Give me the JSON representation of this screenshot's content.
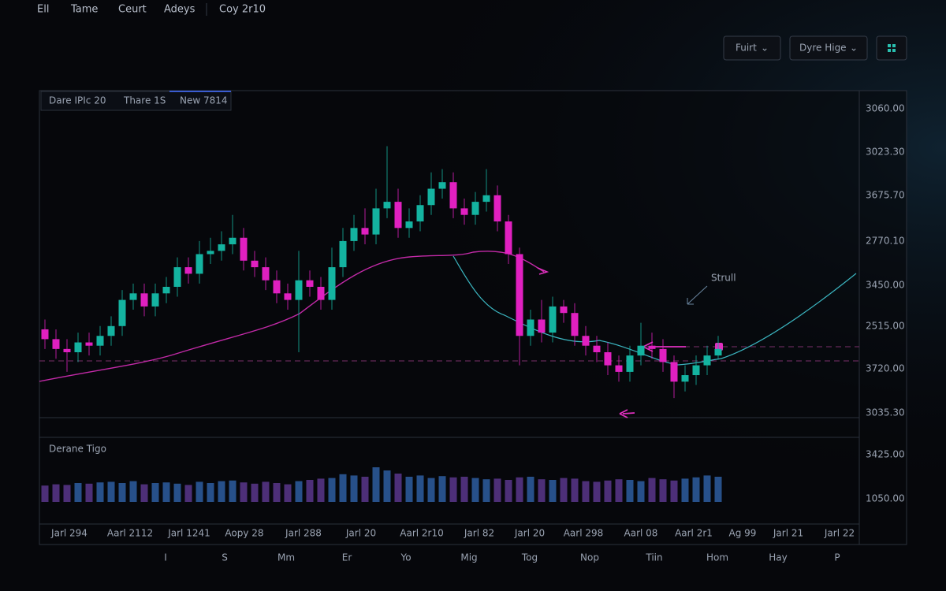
{
  "toolbar": {
    "items": [
      "Ell",
      "Tame",
      "Ceurt",
      "Adeys",
      "Coy 2r10"
    ],
    "buttons": [
      "Fuirt",
      "Dyre Hige"
    ]
  },
  "tabs": [
    "Dare IPIc 20",
    "Thare 1S",
    "New 7814"
  ],
  "annotation": "Strull",
  "volume_title": "Derane Tigo",
  "price_labels": [
    "3060.00",
    "3023.30",
    "3675.70",
    "2770.10",
    "3450.00",
    "2515.00",
    "3720.00",
    "3035.30"
  ],
  "volume_labels": [
    "3425.00",
    "1050.00"
  ],
  "date_labels": [
    "Jarl 294",
    "Aarl 2112",
    "Jarl 1241",
    "Aopy 28",
    "Jarl 288",
    "Jarl 20",
    "Aarl 2r10",
    "Jarl 82",
    "Jarl 20",
    "Aarl 298",
    "Aarl 08",
    "Aarl 2r1",
    "Ag 99",
    "Jarl 21",
    "Jarl 22"
  ],
  "period_labels": [
    "I",
    "S",
    "Mm",
    "Er",
    "Yo",
    "Mig",
    "Tog",
    "Nop",
    "Tiin",
    "Hom",
    "Hay",
    "P"
  ],
  "chart_data": {
    "type": "candlestick",
    "ylim": [
      0,
      100
    ],
    "y2lim": [
      0,
      100
    ],
    "up_color": "#14b3a0",
    "down_color": "#e020c0",
    "volume_up_color": "#27508a",
    "volume_down_color": "#4d2f78",
    "open": [
      27,
      24,
      21,
      20,
      23,
      22,
      25,
      28,
      36,
      38,
      34,
      38,
      40,
      46,
      44,
      50,
      51,
      53,
      55,
      48,
      46,
      42,
      38,
      36,
      42,
      40,
      36,
      46,
      54,
      58,
      56,
      64,
      66,
      58,
      60,
      65,
      70,
      72,
      64,
      62,
      66,
      68,
      60,
      50,
      25,
      30,
      26,
      34,
      32,
      25,
      22,
      20,
      16,
      14,
      19,
      22,
      21,
      17,
      11,
      13,
      16,
      19
    ],
    "high": [
      30,
      27,
      24,
      26,
      26,
      28,
      31,
      39,
      41,
      41,
      41,
      43,
      49,
      49,
      54,
      55,
      57,
      62,
      58,
      51,
      49,
      45,
      41,
      51,
      45,
      43,
      52,
      58,
      62,
      64,
      70,
      83,
      70,
      64,
      68,
      75,
      76,
      75,
      67,
      69,
      76,
      71,
      62,
      52,
      33,
      36,
      37,
      36,
      35,
      28,
      25,
      23,
      19,
      22,
      29,
      26,
      24,
      19,
      16,
      19,
      22,
      25
    ],
    "low": [
      21,
      18,
      14,
      17,
      19,
      19,
      22,
      25,
      33,
      31,
      31,
      35,
      37,
      41,
      41,
      47,
      48,
      50,
      45,
      43,
      39,
      35,
      33,
      20,
      37,
      33,
      33,
      43,
      51,
      53,
      53,
      61,
      55,
      55,
      57,
      62,
      67,
      61,
      59,
      59,
      63,
      57,
      47,
      16,
      22,
      23,
      23,
      29,
      22,
      19,
      17,
      13,
      11,
      11,
      16,
      18,
      14,
      6,
      8,
      10,
      13,
      18
    ],
    "close": [
      24,
      21,
      20,
      23,
      22,
      25,
      28,
      36,
      38,
      34,
      38,
      40,
      46,
      44,
      50,
      51,
      53,
      55,
      48,
      46,
      42,
      38,
      36,
      42,
      40,
      36,
      46,
      54,
      58,
      56,
      64,
      66,
      58,
      60,
      65,
      70,
      72,
      64,
      62,
      66,
      68,
      60,
      50,
      25,
      30,
      26,
      34,
      32,
      25,
      22,
      20,
      16,
      14,
      19,
      22,
      21,
      17,
      11,
      13,
      16,
      19,
      21
    ],
    "volume": [
      26,
      28,
      27,
      30,
      29,
      31,
      32,
      30,
      33,
      28,
      30,
      31,
      29,
      27,
      32,
      30,
      33,
      34,
      31,
      29,
      32,
      30,
      28,
      33,
      35,
      37,
      38,
      44,
      42,
      40,
      55,
      50,
      45,
      40,
      42,
      38,
      41,
      39,
      40,
      38,
      36,
      37,
      35,
      39,
      40,
      36,
      35,
      38,
      37,
      33,
      32,
      34,
      36,
      35,
      33,
      38,
      36,
      34,
      37,
      39,
      42,
      40
    ]
  }
}
